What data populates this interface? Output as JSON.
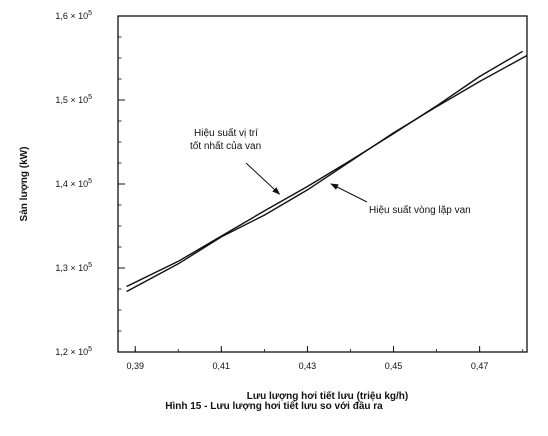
{
  "chart_data": {
    "type": "line",
    "xlabel": "Lưu lượng hơi tiết lưu (triệu kg/h)",
    "ylabel": "Sản lượng (kW)",
    "xlim": [
      0.386,
      0.481
    ],
    "ylim": [
      120000,
      160000
    ],
    "x_ticks": [
      {
        "value": 0.39,
        "label": "0,39"
      },
      {
        "value": 0.41,
        "label": "0,41"
      },
      {
        "value": 0.43,
        "label": "0,43"
      },
      {
        "value": 0.45,
        "label": "0,45"
      },
      {
        "value": 0.47,
        "label": "0,47"
      }
    ],
    "y_ticks": [
      {
        "value": 120000,
        "mant": "1,2 × 10",
        "exp": "5"
      },
      {
        "value": 130000,
        "mant": "1,3 × 10",
        "exp": "5"
      },
      {
        "value": 140000,
        "mant": "1,4 × 10",
        "exp": "5"
      },
      {
        "value": 150000,
        "mant": "1,5 × 10",
        "exp": "5"
      },
      {
        "value": 160000,
        "mant": "1,6 × 10",
        "exp": "5"
      }
    ],
    "series": [
      {
        "name": "Hiệu suất vị trí tốt nhất của van",
        "x": [
          0.388,
          0.4,
          0.41,
          0.42,
          0.43,
          0.44,
          0.45,
          0.46,
          0.47,
          0.48
        ],
        "y": [
          127800,
          130800,
          133800,
          136800,
          139700,
          142800,
          146000,
          149300,
          152800,
          155800
        ]
      },
      {
        "name": "Hiệu suất vòng lặp van",
        "x": [
          0.388,
          0.4,
          0.41,
          0.42,
          0.43,
          0.44,
          0.45,
          0.46,
          0.47,
          0.481
        ],
        "y": [
          127200,
          130500,
          133700,
          136300,
          139300,
          142700,
          146100,
          149200,
          152200,
          155300
        ]
      }
    ],
    "annotations": [
      {
        "lines": [
          "Hiệu suất vị trí",
          "tốt nhất của van"
        ],
        "x": 0.4235,
        "y": 138800,
        "series": 0
      },
      {
        "lines": [
          "Hiệu suất vòng lặp van"
        ],
        "x": 0.4355,
        "y": 140000,
        "series": 1
      }
    ],
    "grid": false
  },
  "caption": "Hình 15 - Lưu lượng hơi tiết lưu so với đầu ra"
}
